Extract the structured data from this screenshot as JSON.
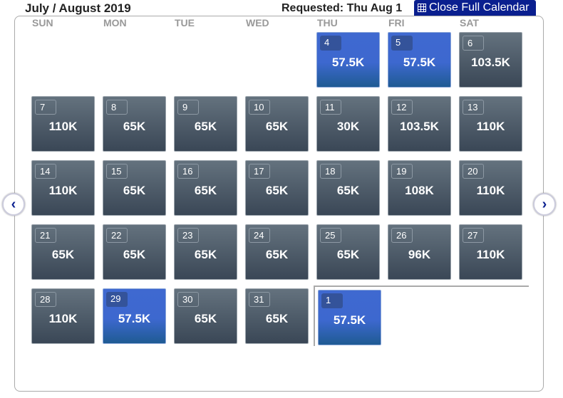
{
  "header": {
    "title": "July / August 2019",
    "requested": "Requested: Thu Aug 1",
    "close_label": "Close Full Calendar"
  },
  "days_of_week": [
    "SUN",
    "MON",
    "TUE",
    "WED",
    "THU",
    "FRI",
    "SAT"
  ],
  "weeks": [
    [
      null,
      null,
      null,
      null,
      {
        "day": "4",
        "price": "57.5K",
        "highlight": true
      },
      {
        "day": "5",
        "price": "57.5K",
        "highlight": true
      },
      {
        "day": "6",
        "price": "103.5K",
        "highlight": false
      }
    ],
    [
      {
        "day": "7",
        "price": "110K",
        "highlight": false
      },
      {
        "day": "8",
        "price": "65K",
        "highlight": false
      },
      {
        "day": "9",
        "price": "65K",
        "highlight": false
      },
      {
        "day": "10",
        "price": "65K",
        "highlight": false
      },
      {
        "day": "11",
        "price": "30K",
        "highlight": false
      },
      {
        "day": "12",
        "price": "103.5K",
        "highlight": false
      },
      {
        "day": "13",
        "price": "110K",
        "highlight": false
      }
    ],
    [
      {
        "day": "14",
        "price": "110K",
        "highlight": false
      },
      {
        "day": "15",
        "price": "65K",
        "highlight": false
      },
      {
        "day": "16",
        "price": "65K",
        "highlight": false
      },
      {
        "day": "17",
        "price": "65K",
        "highlight": false
      },
      {
        "day": "18",
        "price": "65K",
        "highlight": false
      },
      {
        "day": "19",
        "price": "108K",
        "highlight": false
      },
      {
        "day": "20",
        "price": "110K",
        "highlight": false
      }
    ],
    [
      {
        "day": "21",
        "price": "65K",
        "highlight": false
      },
      {
        "day": "22",
        "price": "65K",
        "highlight": false
      },
      {
        "day": "23",
        "price": "65K",
        "highlight": false
      },
      {
        "day": "24",
        "price": "65K",
        "highlight": false
      },
      {
        "day": "25",
        "price": "65K",
        "highlight": false
      },
      {
        "day": "26",
        "price": "96K",
        "highlight": false
      },
      {
        "day": "27",
        "price": "110K",
        "highlight": false
      }
    ],
    [
      {
        "day": "28",
        "price": "110K",
        "highlight": false
      },
      {
        "day": "29",
        "price": "57.5K",
        "highlight": true
      },
      {
        "day": "30",
        "price": "65K",
        "highlight": false
      },
      {
        "day": "31",
        "price": "65K",
        "highlight": false
      },
      {
        "day": "1",
        "price": "57.5K",
        "highlight": true,
        "requested": true
      },
      null,
      null
    ]
  ],
  "nav": {
    "prev": "‹",
    "next": "›"
  }
}
